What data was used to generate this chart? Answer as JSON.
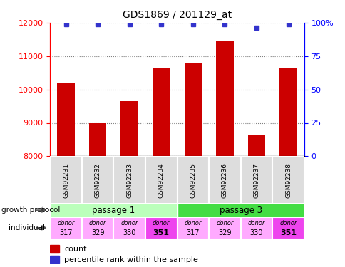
{
  "title": "GDS1869 / 201129_at",
  "samples": [
    "GSM92231",
    "GSM92232",
    "GSM92233",
    "GSM92234",
    "GSM92235",
    "GSM92236",
    "GSM92237",
    "GSM92238"
  ],
  "counts": [
    10200,
    9000,
    9650,
    10650,
    10800,
    11450,
    8650,
    10650
  ],
  "percentiles": [
    99,
    99,
    99,
    99,
    99,
    99,
    96,
    99
  ],
  "ylim_left": [
    8000,
    12000
  ],
  "ylim_right": [
    0,
    100
  ],
  "yticks_left": [
    8000,
    9000,
    10000,
    11000,
    12000
  ],
  "yticks_right": [
    0,
    25,
    50,
    75,
    100
  ],
  "bar_color": "#cc0000",
  "dot_color": "#3333cc",
  "passage_1_color": "#bbffbb",
  "passage_3_color": "#44dd44",
  "donor_light_color": "#ffaaff",
  "donor_dark_color": "#ee44ee",
  "sample_bg_color": "#dddddd",
  "passages": [
    "passage 1",
    "passage 3"
  ],
  "donor_numbers": [
    "317",
    "329",
    "330",
    "351",
    "317",
    "329",
    "330",
    "351"
  ],
  "growth_protocol_label": "growth protocol",
  "individual_label": "individual",
  "legend_count": "count",
  "legend_percentile": "percentile rank within the sample"
}
